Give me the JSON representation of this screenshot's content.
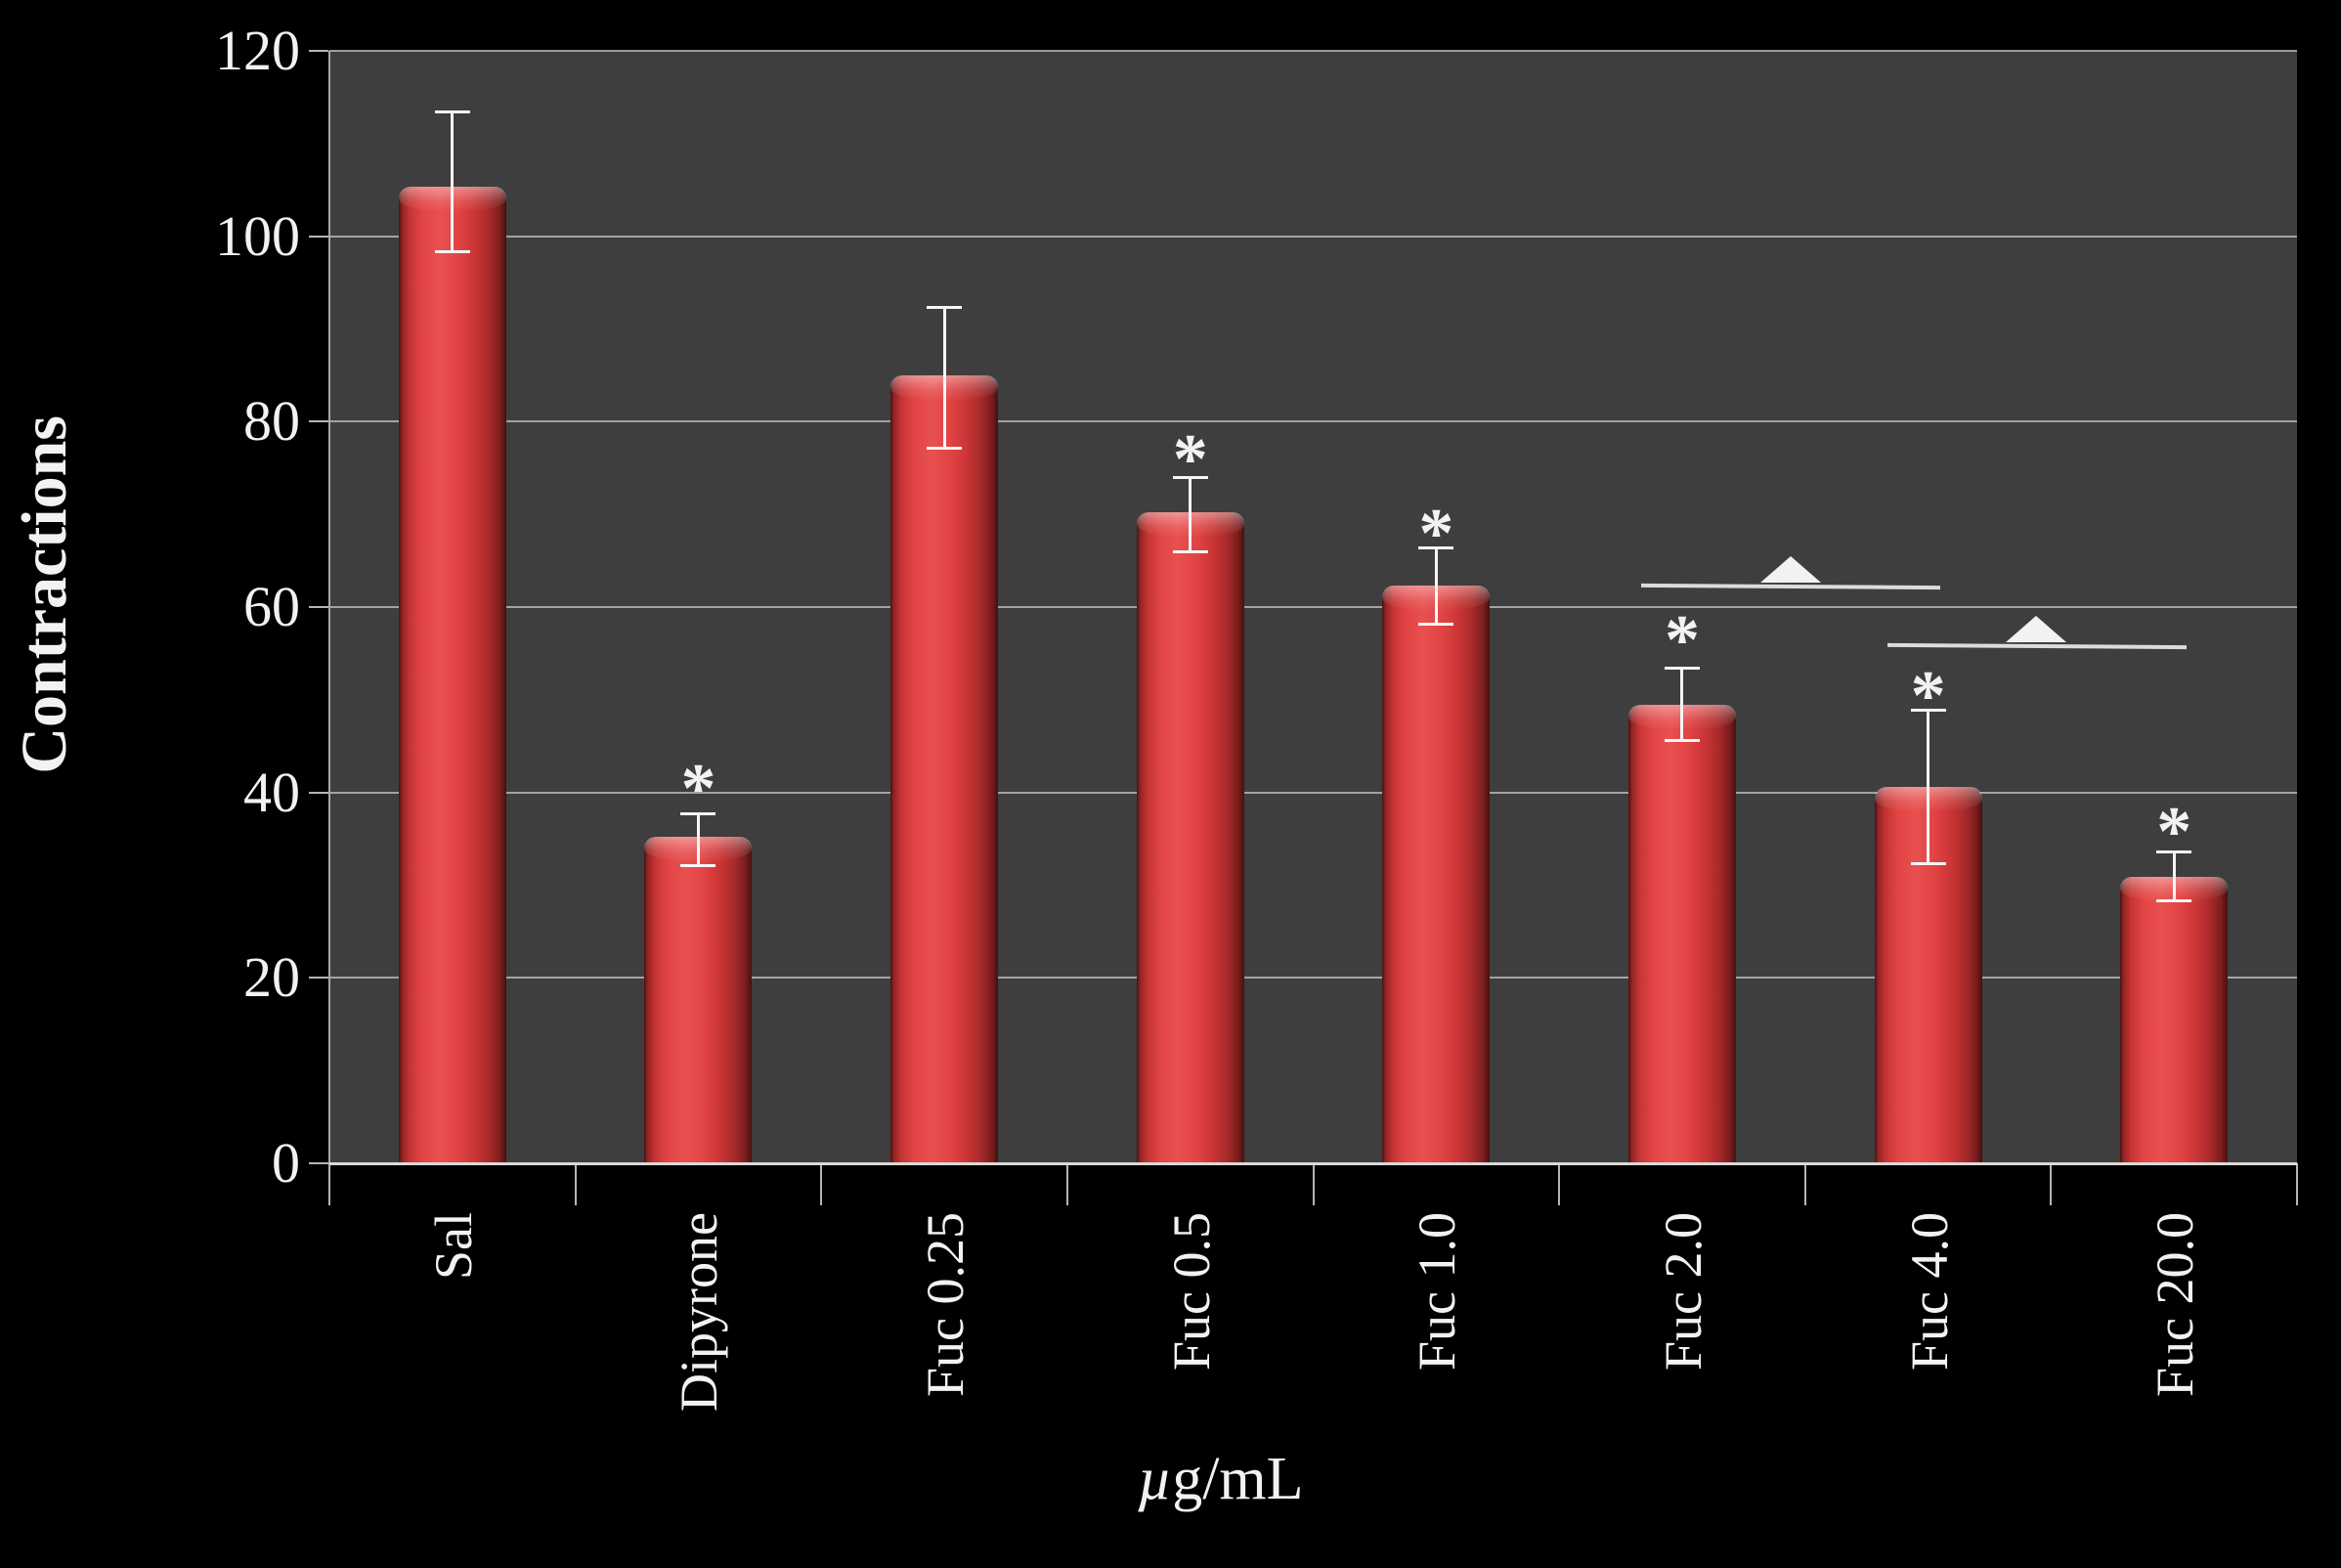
{
  "figure": {
    "background_color": "#000000",
    "plot_background_color": "#3e3e3e",
    "grid_color": "#bdbdbd",
    "text_color": "#f2f2f2",
    "error_bar_color": "#f5f5f5",
    "annotation_color": "#f2f2f2",
    "bar_color": "#d93b3b"
  },
  "chart_data": {
    "type": "bar",
    "title": "",
    "xlabel": "µg/mL",
    "ylabel": "Contractions",
    "ylim": [
      0,
      120
    ],
    "yticks": [
      0,
      20,
      40,
      60,
      80,
      100,
      120
    ],
    "grid": true,
    "legend": false,
    "categories": [
      "Sal",
      "Dipyrone",
      "Fuc 0.25",
      "Fuc 0.5",
      "Fuc 1.0",
      "Fuc 2.0",
      "Fuc 4.0",
      "Fuc 20.0"
    ],
    "values": [
      105.3,
      35.2,
      85.0,
      70.2,
      62.3,
      49.5,
      40.6,
      30.9
    ],
    "errors_up": [
      8.2,
      2.5,
      7.4,
      3.8,
      4.1,
      4.0,
      8.3,
      2.7
    ],
    "errors_down": [
      7.0,
      3.1,
      7.9,
      4.3,
      4.2,
      3.9,
      8.3,
      2.6
    ],
    "asterisk_annotations": [
      null,
      42,
      null,
      77.5,
      69.5,
      58,
      52,
      37.3
    ],
    "asterisk_symbol": "*",
    "comparison_lines": [
      {
        "from_category": "Fuc 2.0",
        "to_category": "Fuc 4.0",
        "y_value": 62.2,
        "marker": "triangle"
      },
      {
        "from_category": "Fuc 4.0",
        "to_category": "Fuc 20.0",
        "y_value": 55.8,
        "marker": "triangle"
      }
    ]
  }
}
